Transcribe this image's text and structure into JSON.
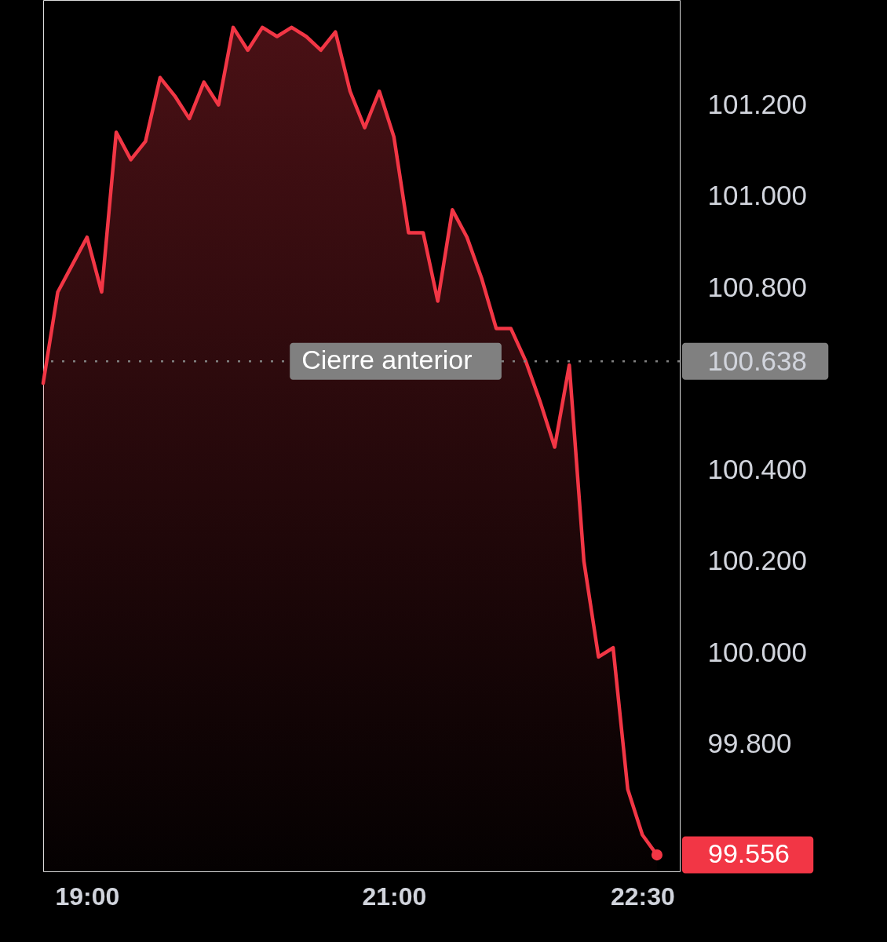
{
  "chart_data": {
    "type": "area",
    "categories": [
      null,
      null,
      null,
      "19:00",
      null,
      null,
      null,
      null,
      null,
      null,
      null,
      null,
      null,
      null,
      null,
      null,
      null,
      null,
      null,
      null,
      null,
      null,
      null,
      null,
      "21:00",
      null,
      null,
      null,
      null,
      null,
      null,
      null,
      null,
      null,
      null,
      null,
      null,
      null,
      null,
      null,
      null,
      "22:30",
      null
    ],
    "series": [
      {
        "color": "#f23645",
        "values": [
          100.59,
          100.79,
          100.85,
          100.91,
          100.79,
          101.14,
          101.08,
          101.12,
          101.26,
          101.22,
          101.17,
          101.25,
          101.2,
          101.37,
          101.32,
          101.37,
          101.35,
          101.37,
          101.35,
          101.32,
          101.36,
          101.23,
          101.15,
          101.23,
          101.13,
          100.92,
          100.92,
          100.77,
          100.97,
          100.91,
          100.82,
          100.71,
          100.71,
          100.64,
          100.55,
          100.45,
          100.63,
          100.2,
          99.99,
          100.01,
          99.7,
          99.6,
          99.556
        ]
      },
      {
        "type": "scatter",
        "color": "#f23645",
        "values": [
          null,
          null,
          null,
          null,
          null,
          null,
          null,
          null,
          null,
          null,
          null,
          null,
          null,
          null,
          null,
          null,
          null,
          null,
          null,
          null,
          null,
          null,
          null,
          null,
          null,
          null,
          null,
          null,
          null,
          null,
          null,
          null,
          null,
          null,
          null,
          null,
          null,
          null,
          null,
          null,
          null,
          null,
          99.556
        ],
        "value_labels": [
          null,
          null,
          null,
          null,
          null,
          null,
          null,
          null,
          null,
          null,
          null,
          null,
          null,
          null,
          null,
          null,
          null,
          null,
          null,
          null,
          null,
          null,
          null,
          null,
          null,
          null,
          null,
          null,
          null,
          null,
          null,
          null,
          null,
          null,
          null,
          null,
          null,
          null,
          null,
          null,
          null,
          null,
          "99.556"
        ]
      }
    ],
    "ylim": [
      99.52,
      101.43
    ],
    "yticks": [
      {
        "value": 99.8,
        "label": "99.800"
      },
      {
        "value": 100.0,
        "label": "100.000"
      },
      {
        "value": 100.2,
        "label": "100.200"
      },
      {
        "value": 100.4,
        "label": "100.400"
      },
      {
        "value": 100.638,
        "label": "100.638"
      },
      {
        "value": 100.8,
        "label": "100.800"
      },
      {
        "value": 101.0,
        "label": "101.000"
      },
      {
        "value": 101.2,
        "label": "101.200"
      }
    ],
    "ref_lines": [
      {
        "axis": "y",
        "value": 100.638,
        "label": "Cierre anterior",
        "color": "#808080",
        "line_style": "dotted"
      }
    ]
  }
}
